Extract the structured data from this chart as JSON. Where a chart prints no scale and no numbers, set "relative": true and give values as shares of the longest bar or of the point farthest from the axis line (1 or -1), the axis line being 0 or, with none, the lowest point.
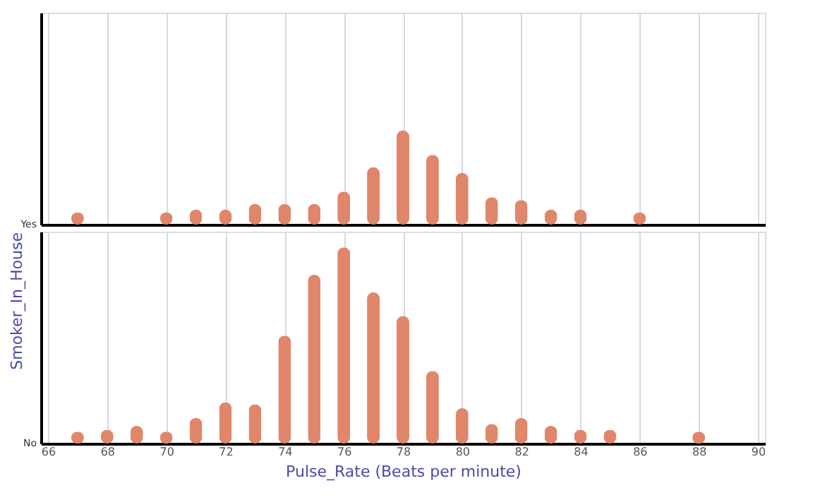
{
  "chart_data": [
    {
      "type": "bar",
      "relative": true,
      "x": [
        67,
        70,
        71,
        72,
        73,
        74,
        75,
        76,
        77,
        78,
        79,
        80,
        81,
        82,
        83,
        84,
        86
      ],
      "xlim": [
        66,
        90
      ],
      "xticks": [
        66,
        68,
        70,
        72,
        74,
        76,
        78,
        80,
        82,
        84,
        86,
        88,
        90
      ],
      "tick_labels": false,
      "grid": "x",
      "series": [
        {
          "name": "Yes",
          "color": "#e0866a",
          "values": [
            0.13,
            0.13,
            0.16,
            0.16,
            0.22,
            0.22,
            0.22,
            0.35,
            0.61,
            1,
            0.74,
            0.55,
            0.29,
            0.26,
            0.16,
            0.16,
            0.13
          ]
        }
      ]
    },
    {
      "type": "bar",
      "relative": true,
      "x": [
        67,
        68,
        69,
        70,
        71,
        72,
        73,
        74,
        75,
        76,
        77,
        78,
        79,
        80,
        81,
        82,
        83,
        84,
        85,
        88
      ],
      "xlim": [
        66,
        90
      ],
      "xticks": [
        66,
        68,
        70,
        72,
        74,
        76,
        78,
        80,
        82,
        84,
        86,
        88,
        90
      ],
      "grid": "x",
      "xlabel": "Pulse_Rate (Beats per minute)",
      "ylabel": "Smoker_In_House",
      "series": [
        {
          "name": "No",
          "color": "#e0866a",
          "values": [
            0.06,
            0.07,
            0.09,
            0.06,
            0.13,
            0.21,
            0.2,
            0.55,
            0.86,
            1,
            0.77,
            0.65,
            0.37,
            0.18,
            0.1,
            0.13,
            0.09,
            0.07,
            0.07,
            0.06
          ]
        }
      ]
    }
  ]
}
